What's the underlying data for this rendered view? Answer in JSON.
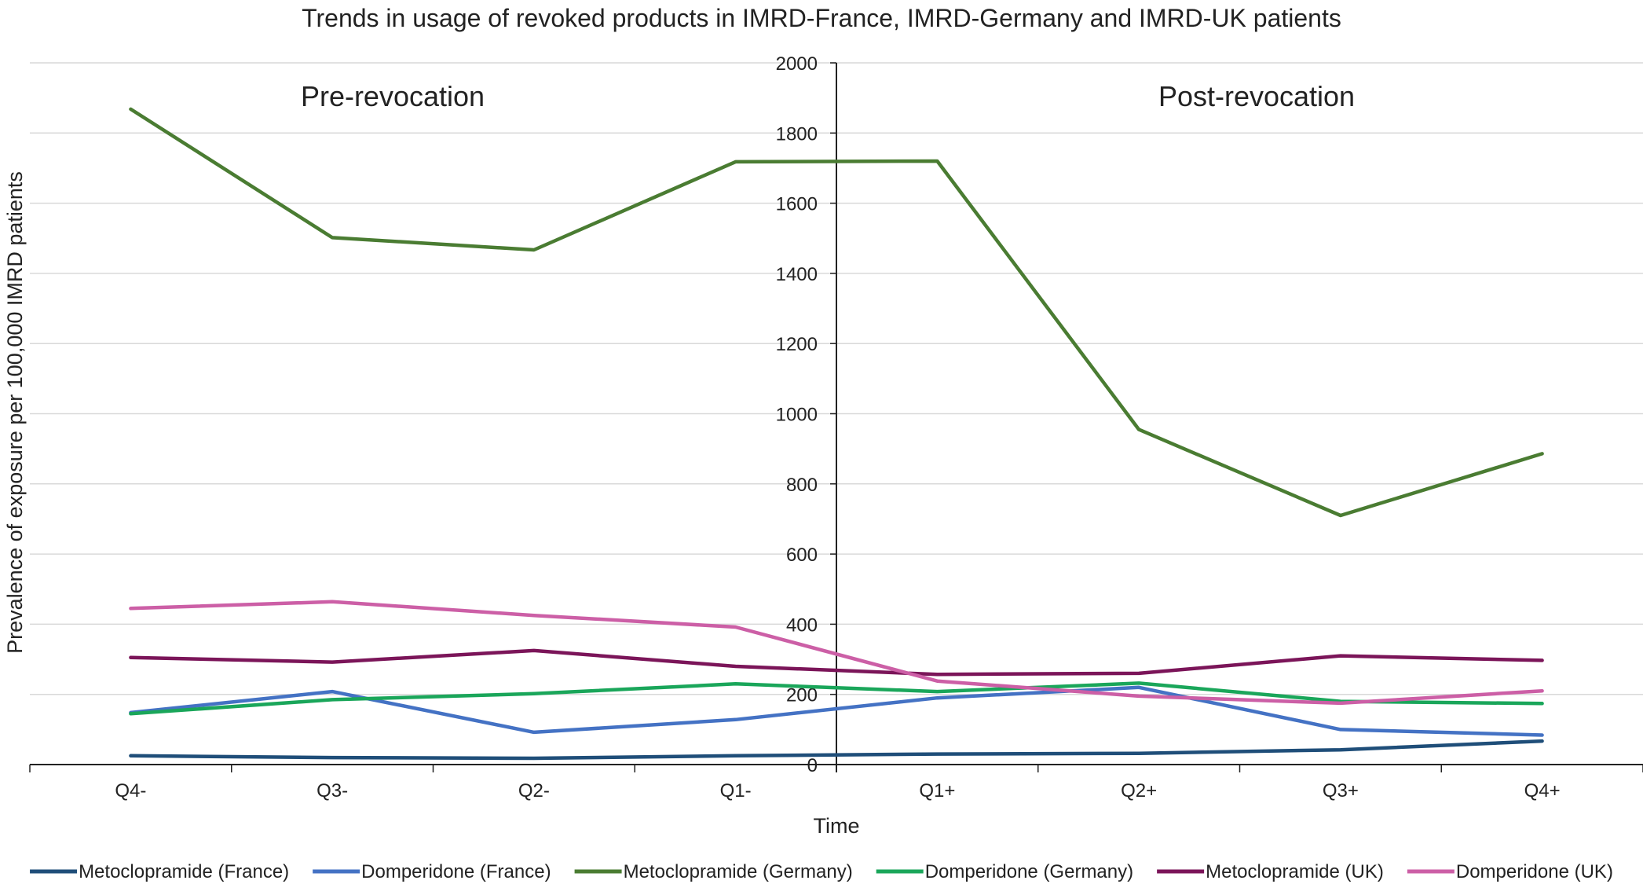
{
  "chart_data": {
    "type": "line",
    "title": "Trends in usage of revoked products in IMRD-France, IMRD-Germany and IMRD-UK patients",
    "xlabel": "Time",
    "ylabel": "Prevalence of exposure per 100,000 IMRD patients",
    "categories": [
      "Q4-",
      "Q3-",
      "Q2-",
      "Q1-",
      "Q1+",
      "Q2+",
      "Q3+",
      "Q4+"
    ],
    "ylim": [
      0,
      2000
    ],
    "yticks": [
      0,
      200,
      400,
      600,
      800,
      1000,
      1200,
      1400,
      1600,
      1800,
      2000
    ],
    "grid": true,
    "legend_position": "bottom",
    "annotations": {
      "pre": "Pre-revocation",
      "post": "Post-revocation"
    },
    "series": [
      {
        "name": "Metoclopramide (France)",
        "color": "#1f4e79",
        "values": [
          25,
          20,
          18,
          25,
          30,
          32,
          42,
          67
        ]
      },
      {
        "name": "Domperidone (France)",
        "color": "#4472c4",
        "values": [
          148,
          208,
          92,
          128,
          190,
          220,
          100,
          84
        ]
      },
      {
        "name": "Metoclopramide (Germany)",
        "color": "#4a7c32",
        "values": [
          1868,
          1502,
          1467,
          1718,
          1720,
          955,
          710,
          886
        ]
      },
      {
        "name": "Domperidone (Germany)",
        "color": "#1aa65a",
        "values": [
          145,
          185,
          202,
          230,
          208,
          232,
          180,
          174
        ]
      },
      {
        "name": "Metoclopramide (UK)",
        "color": "#7b1559",
        "values": [
          305,
          292,
          325,
          280,
          257,
          260,
          310,
          297
        ]
      },
      {
        "name": "Domperidone (UK)",
        "color": "#cc5fa6",
        "values": [
          445,
          464,
          425,
          392,
          238,
          195,
          175,
          210
        ]
      }
    ]
  }
}
